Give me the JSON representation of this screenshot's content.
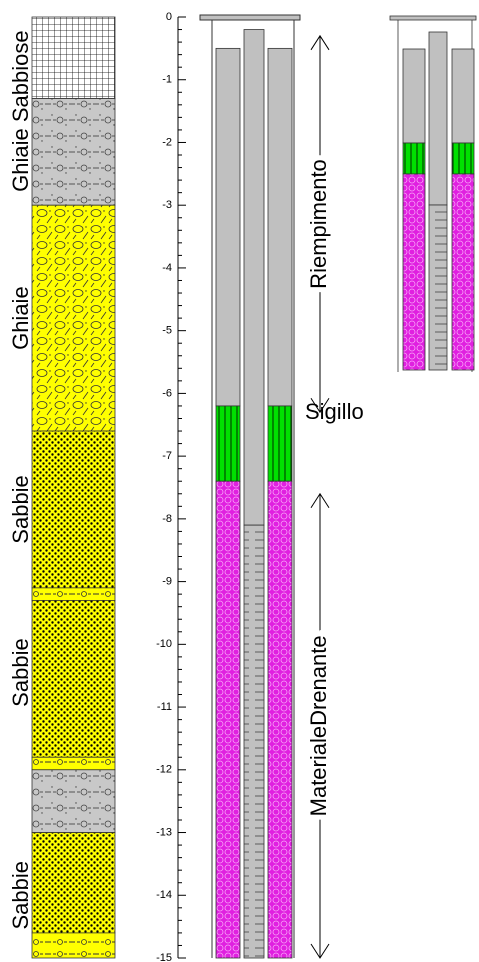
{
  "axis": {
    "ticks": [
      0,
      -1,
      -2,
      -3,
      -4,
      -5,
      -6,
      -7,
      -8,
      -9,
      -10,
      -11,
      -12,
      -13,
      -14,
      -15
    ],
    "minor_per_major": 5
  },
  "lithology": {
    "units": [
      {
        "label": "Ghiaie Sabbiose",
        "layers": [
          {
            "kind": "grid",
            "top": 0,
            "bottom": -1.3
          },
          {
            "kind": "gray",
            "top": -1.3,
            "bottom": -3.0
          }
        ]
      },
      {
        "label": "Ghiaie",
        "layers": [
          {
            "kind": "gravel",
            "top": -3.0,
            "bottom": -6.6
          }
        ]
      },
      {
        "label": "Sabbie",
        "layers": [
          {
            "kind": "sand",
            "top": -6.6,
            "bottom": -9.1
          }
        ]
      },
      {
        "label": "Sabbie",
        "layers": [
          {
            "kind": "mix",
            "top": -9.1,
            "bottom": -9.3
          },
          {
            "kind": "sand",
            "top": -9.3,
            "bottom": -11.8
          }
        ]
      },
      {
        "layers": [
          {
            "kind": "mix",
            "top": -11.8,
            "bottom": -12.0
          },
          {
            "kind": "gray",
            "top": -12.0,
            "bottom": -13.0
          }
        ]
      },
      {
        "label": "Sabbie",
        "layers": [
          {
            "kind": "sand",
            "top": -13.0,
            "bottom": -14.6
          },
          {
            "kind": "mix",
            "top": -14.6,
            "bottom": -15
          }
        ]
      }
    ]
  },
  "well": {
    "annulus": [
      {
        "kind": "fill",
        "top": -0.5,
        "bottom": -6.2
      },
      {
        "kind": "seal",
        "top": -6.2,
        "bottom": -7.4
      },
      {
        "kind": "drain",
        "top": -7.4,
        "bottom": -15
      }
    ],
    "pipe_top": -0.2,
    "screen_top": -8.1,
    "bottom": -15
  },
  "annotations": [
    {
      "text": "Riempimento",
      "top": -0.3,
      "bottom": -6.3
    },
    {
      "text": "Sigillo"
    },
    {
      "text": "MaterialeDrenante",
      "top": -7.6,
      "bottom": -15
    }
  ]
}
